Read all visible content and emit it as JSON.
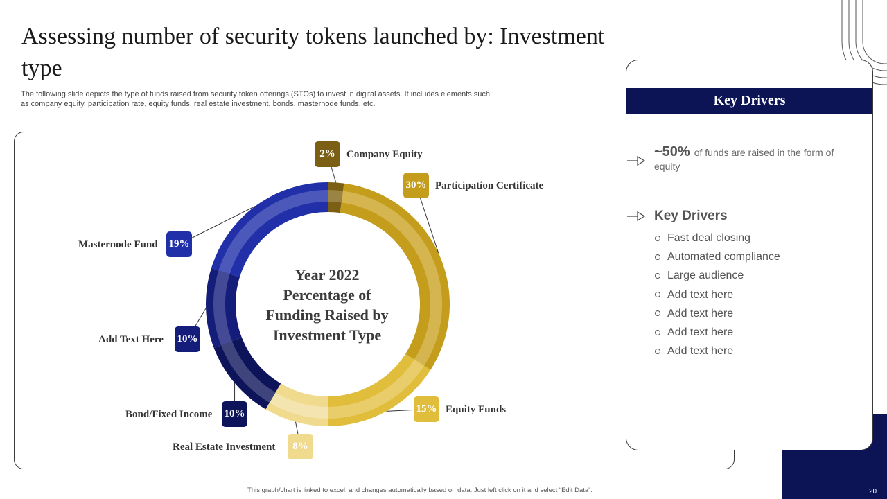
{
  "slide": {
    "title": "Assessing number of security tokens launched by: Investment type",
    "subtitle": "The following slide depicts the type of funds raised from security token offerings (STOs) to invest in digital assets. It includes elements such as company equity, participation rate, equity funds, real estate investment, bonds, masternode funds, etc.",
    "footnote": "This graph/chart is linked to excel, and changes automatically based on data. Just left click on it and select “Edit Data”.",
    "page_number": "20"
  },
  "chart_data": {
    "type": "pie",
    "variant": "donut",
    "center_text": [
      "Year 2022",
      "Percentage of",
      "Funding Raised by",
      "Investment Type"
    ],
    "series": [
      {
        "name": "Company Equity",
        "value": 2,
        "value_label": "2%",
        "color": "#7a5f14",
        "inner_color": "#9a8443"
      },
      {
        "name": "Participation Certificate",
        "value": 30,
        "value_label": "30%",
        "color": "#c49d1c",
        "inner_color": "#d5b550"
      },
      {
        "name": "Equity Funds",
        "value": 15,
        "value_label": "15%",
        "color": "#e1bd3c",
        "inner_color": "#e9cd6b"
      },
      {
        "name": "Real Estate Investment",
        "value": 8,
        "value_label": "8%",
        "color": "#f0da8e",
        "inner_color": "#f4e5b0"
      },
      {
        "name": "Bond/Fixed Income",
        "value": 10,
        "value_label": "10%",
        "color": "#0e145a",
        "inner_color": "#3f447c"
      },
      {
        "name": "Add Text Here",
        "value": 10,
        "value_label": "10%",
        "color": "#151d7a",
        "inner_color": "#444a95"
      },
      {
        "name": "Masternode Fund",
        "value": 19,
        "value_label": "19%",
        "color": "#2130a8",
        "inner_color": "#4d59ba"
      }
    ]
  },
  "panel": {
    "header": "Key Drivers",
    "stat_value": "~50%",
    "stat_text": "of funds are raised in the form of equity",
    "drivers_title": "Key Drivers",
    "drivers": [
      "Fast deal closing",
      "Automated compliance",
      "Large audience",
      "Add text here",
      "Add text here",
      "Add text here",
      "Add text here"
    ]
  }
}
